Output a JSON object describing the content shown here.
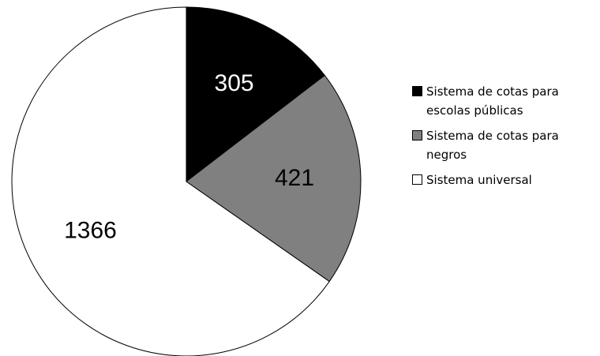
{
  "chart_data": {
    "type": "pie",
    "title": "",
    "slices": [
      {
        "label": "Sistema de cotas para escolas públicas",
        "value": 305,
        "color": "#000000",
        "text_color": "#ffffff"
      },
      {
        "label": "Sistema de cotas para negros",
        "value": 421,
        "color": "#808080",
        "text_color": "#000000"
      },
      {
        "label": "Sistema universal",
        "value": 1366,
        "color": "#ffffff",
        "text_color": "#000000"
      }
    ],
    "start_angle": "12 o'clock",
    "direction": "clockwise",
    "legend_position": "right"
  },
  "legend": {
    "items": [
      {
        "label": "Sistema de cotas para escolas públicas"
      },
      {
        "label": "Sistema de cotas para negros"
      },
      {
        "label": "Sistema universal"
      }
    ]
  }
}
